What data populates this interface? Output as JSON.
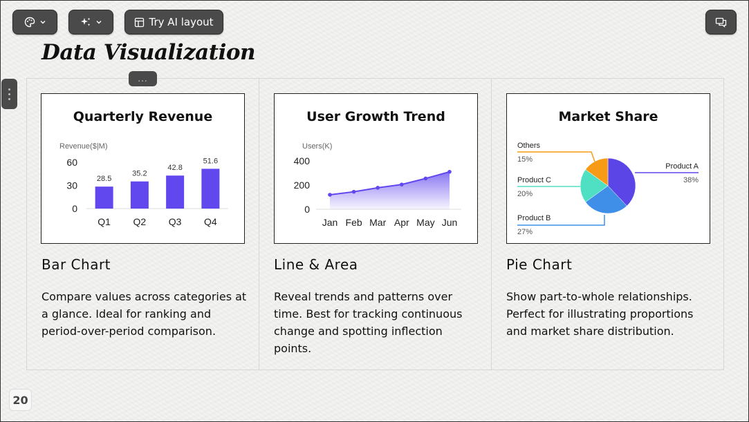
{
  "toolbar": {
    "theme_button": {
      "icon": "palette-icon"
    },
    "ai_button": {
      "icon": "sparkles-icon"
    },
    "try_ai_layout_label": "Try AI layout",
    "comments_button": {
      "icon": "comments-icon"
    }
  },
  "slide": {
    "title": "Data Visualization",
    "drag_handle": "...",
    "page_number": "20"
  },
  "columns": [
    {
      "heading": "Bar Chart",
      "description": "Compare values across categories at a glance. Ideal for ranking and period-over-period comparison."
    },
    {
      "heading": "Line & Area",
      "description": "Reveal trends and patterns over time. Best for tracking continuous change and spotting inflection points."
    },
    {
      "heading": "Pie Chart",
      "description": "Show part-to-whole relationships. Perfect for illustrating proportions and market share distribution."
    }
  ],
  "chart_data": [
    {
      "type": "bar",
      "title": "Quarterly Revenue",
      "ylabel": "Revenue($|M)",
      "categories": [
        "Q1",
        "Q2",
        "Q3",
        "Q4"
      ],
      "values": [
        28.5,
        35.2,
        42.8,
        51.6
      ],
      "yticks": [
        0,
        30,
        60
      ],
      "ylim": [
        0,
        60
      ],
      "color": "#6148ee",
      "grid": false
    },
    {
      "type": "area",
      "title": "User Growth Trend",
      "ylabel": "Users(K)",
      "categories": [
        "Jan",
        "Feb",
        "Mar",
        "Apr",
        "May",
        "Jun"
      ],
      "values": [
        120,
        145,
        178,
        205,
        255,
        310
      ],
      "yticks": [
        0,
        200,
        400
      ],
      "ylim": [
        0,
        400
      ],
      "color": "#6148ee",
      "grid": false
    },
    {
      "type": "pie",
      "title": "Market Share",
      "slices": [
        {
          "label": "Product A",
          "value": 38,
          "pct": "38%",
          "color": "#5b45e6"
        },
        {
          "label": "Product B",
          "value": 27,
          "pct": "27%",
          "color": "#3f8ee8"
        },
        {
          "label": "Product C",
          "value": 20,
          "pct": "20%",
          "color": "#4fe0c4"
        },
        {
          "label": "Others",
          "value": 15,
          "pct": "15%",
          "color": "#f79b16"
        }
      ]
    }
  ]
}
